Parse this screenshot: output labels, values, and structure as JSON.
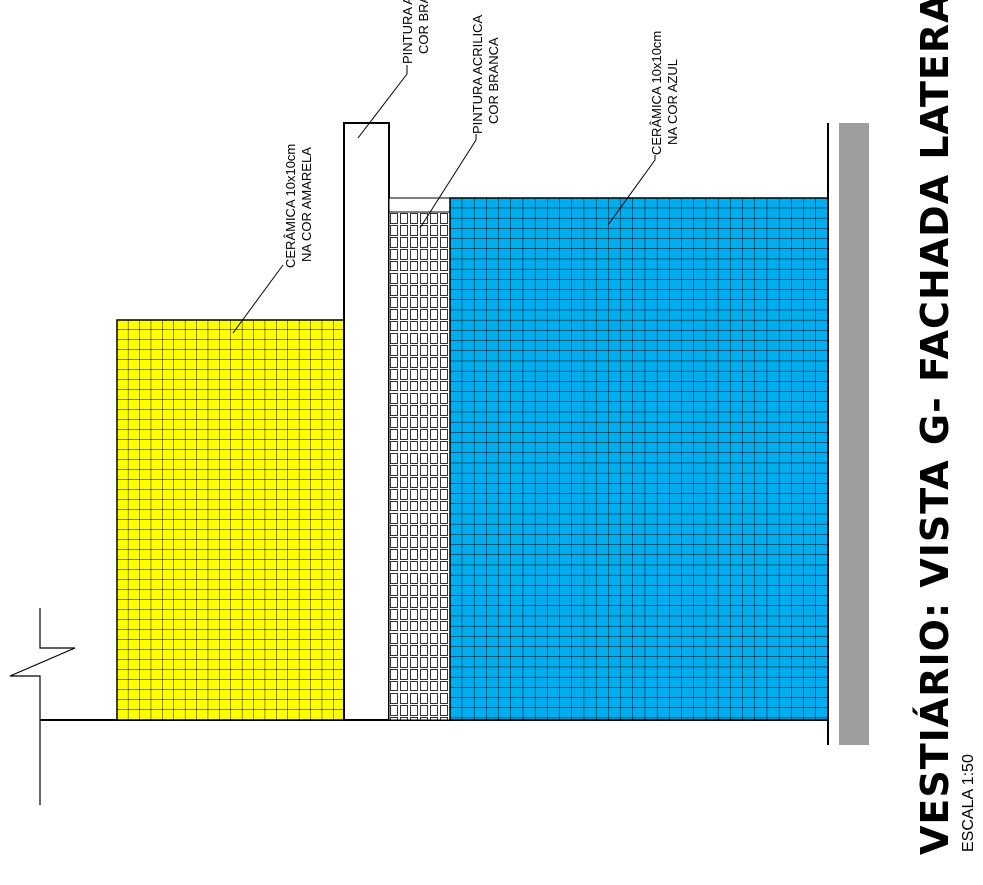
{
  "title": "VESTIÁRIO: VISTA G- FACHADA LATERAL",
  "scale": "ESCALA 1:50",
  "colors": {
    "yellow_tile": "#FFFF00",
    "blue_tile": "#00AEEF",
    "white_tile": "#FFFFFF",
    "ground": "#9E9E9E",
    "line": "#000000"
  },
  "annotations": {
    "yellow": {
      "line1": "CERÂMICA 10x10cm",
      "line2": "NA COR AMARELA"
    },
    "pillar": {
      "line1": "PINTURA ACRILICA",
      "line2": "COR BRANCA"
    },
    "white_strip": {
      "line1": "PINTURA ACRILICA",
      "line2": "COR BRANCA"
    },
    "blue": {
      "line1": "CERÂMICA 10x10cm",
      "line2": "NA COR AZUL"
    }
  }
}
